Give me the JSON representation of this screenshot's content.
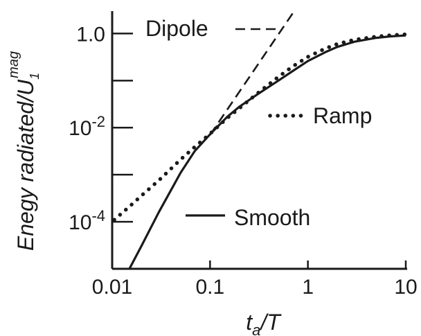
{
  "chart_data": {
    "type": "line",
    "title": "",
    "xlabel": {
      "main": "t",
      "sub": "a",
      "rest": "/T"
    },
    "ylabel": {
      "main": "Enegy radiated/U",
      "sub": "1",
      "sup": "mag"
    },
    "x_scale": "log",
    "y_scale": "log",
    "xlim": [
      0.01,
      10
    ],
    "ylim": [
      1e-05,
      3
    ],
    "x_ticks": [
      {
        "value": 0.01,
        "label": "0.01"
      },
      {
        "value": 0.1,
        "label": "0.1"
      },
      {
        "value": 1,
        "label": "1"
      },
      {
        "value": 10,
        "label": "10"
      }
    ],
    "y_ticks": [
      {
        "value": 0.0001,
        "base": "10",
        "exp": "-4",
        "plain": ""
      },
      {
        "value": 0.01,
        "base": "10",
        "exp": "-2",
        "plain": ""
      },
      {
        "value": 1,
        "base": "",
        "exp": "",
        "plain": "1.0"
      }
    ],
    "y_minor_ticks": [
      0.001,
      0.1
    ],
    "grid": false,
    "series": [
      {
        "name": "Dipole",
        "style": "dashed",
        "x": [
          0.1,
          0.7
        ],
        "y": [
          0.007,
          2.7
        ]
      },
      {
        "name": "Ramp",
        "style": "dotted",
        "x": [
          0.0105,
          0.015,
          0.02,
          0.03,
          0.05,
          0.07,
          0.1,
          0.15,
          0.2,
          0.3,
          0.5,
          0.7,
          1,
          1.5,
          2,
          3,
          5,
          7,
          10
        ],
        "y": [
          0.00011,
          0.00021,
          0.00036,
          0.00076,
          0.0021,
          0.0039,
          0.0074,
          0.016,
          0.026,
          0.052,
          0.12,
          0.2,
          0.32,
          0.48,
          0.6,
          0.74,
          0.86,
          0.92,
          0.96
        ]
      },
      {
        "name": "Smooth",
        "style": "solid",
        "x": [
          0.015,
          0.02,
          0.03,
          0.05,
          0.07,
          0.1,
          0.15,
          0.2,
          0.3,
          0.5,
          0.7,
          1,
          1.5,
          2,
          3,
          5,
          7,
          10
        ],
        "y": [
          1e-05,
          3.1e-05,
          0.00016,
          0.0011,
          0.0032,
          0.0072,
          0.017,
          0.028,
          0.05,
          0.1,
          0.16,
          0.26,
          0.4,
          0.52,
          0.67,
          0.81,
          0.87,
          0.91
        ]
      }
    ],
    "legend": [
      {
        "name": "Dipole",
        "style": "dashed",
        "placement": "top-center"
      },
      {
        "name": "Ramp",
        "style": "dotted",
        "placement": "middle-right"
      },
      {
        "name": "Smooth",
        "style": "solid",
        "placement": "bottom-center"
      }
    ],
    "colors": {
      "line": "#1a1a1a",
      "axis": "#1a1a1a"
    }
  }
}
